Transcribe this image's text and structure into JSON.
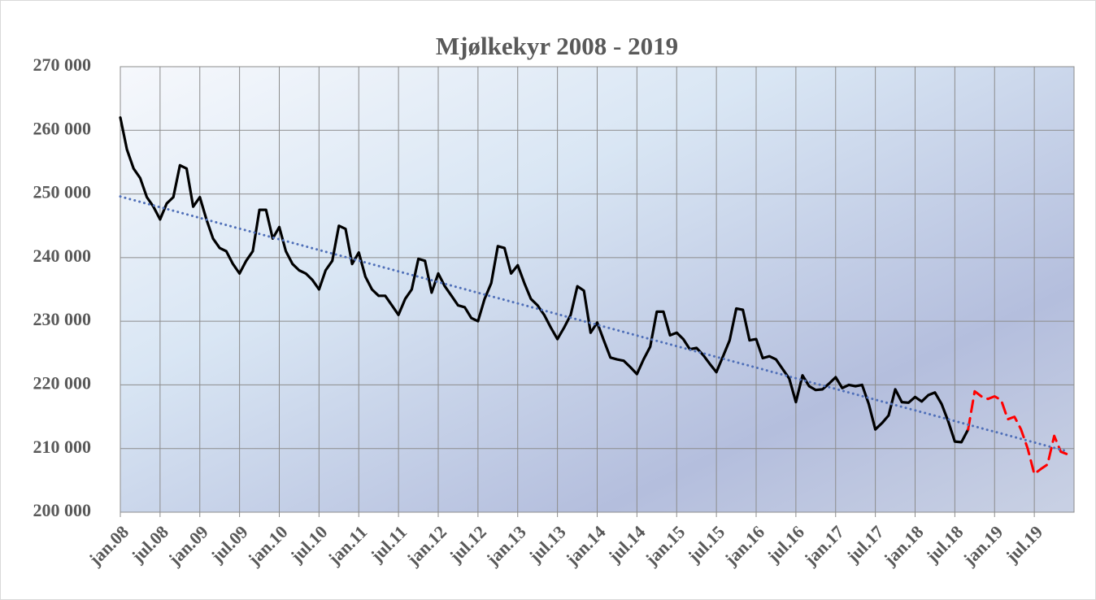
{
  "chart_data": {
    "type": "line",
    "title": "Mjølkekyr 2008 - 2019",
    "categories": [
      "jan.08",
      null,
      null,
      null,
      null,
      null,
      "jul.08",
      null,
      null,
      null,
      null,
      null,
      "jan.09",
      null,
      null,
      null,
      null,
      null,
      "jul.09",
      null,
      null,
      null,
      null,
      null,
      "jan.10",
      null,
      null,
      null,
      null,
      null,
      "jul.10",
      null,
      null,
      null,
      null,
      null,
      "jan.11",
      null,
      null,
      null,
      null,
      null,
      "jul.11",
      null,
      null,
      null,
      null,
      null,
      "jan.12",
      null,
      null,
      null,
      null,
      null,
      "jul.12",
      null,
      null,
      null,
      null,
      null,
      "jan.13",
      null,
      null,
      null,
      null,
      null,
      "jul.13",
      null,
      null,
      null,
      null,
      null,
      "jan.14",
      null,
      null,
      null,
      null,
      null,
      "jul.14",
      null,
      null,
      null,
      null,
      null,
      "jan.15",
      null,
      null,
      null,
      null,
      null,
      "jul.15",
      null,
      null,
      null,
      null,
      null,
      "jan.16",
      null,
      null,
      null,
      null,
      null,
      "jul.16",
      null,
      null,
      null,
      null,
      null,
      "jan.17",
      null,
      null,
      null,
      null,
      null,
      "jul.17",
      null,
      null,
      null,
      null,
      null,
      "jan.18",
      null,
      null,
      null,
      null,
      null,
      "jul.18",
      null,
      null,
      null,
      null,
      null,
      "jan.19",
      null,
      null,
      null,
      null,
      null,
      "jul.19",
      null,
      null,
      null,
      null,
      null
    ],
    "series": [
      {
        "color": "#000000",
        "style": "solid",
        "values": [
          262000,
          257000,
          254000,
          252500,
          249500,
          248000,
          246000,
          248500,
          249500,
          254500,
          254000,
          248000,
          249500,
          246000,
          243000,
          241500,
          241000,
          239000,
          237500,
          239500,
          241000,
          247500,
          247500,
          243000,
          244800,
          241000,
          239000,
          238000,
          237500,
          236500,
          235000,
          238000,
          239500,
          245000,
          244500,
          239000,
          240800,
          237000,
          235000,
          234000,
          234000,
          232500,
          231000,
          233500,
          235000,
          239800,
          239500,
          234500,
          237500,
          235500,
          234000,
          232500,
          232200,
          230500,
          230000,
          233500,
          236000,
          241800,
          241500,
          237500,
          238800,
          236000,
          233500,
          232500,
          231000,
          229000,
          227200,
          229000,
          231000,
          235500,
          234800,
          228200,
          229800,
          227000,
          224300,
          224000,
          223800,
          222800,
          221700,
          224000,
          226000,
          231500,
          231500,
          227800,
          228200,
          227200,
          225600,
          225800,
          224700,
          223300,
          222000,
          224500,
          227000,
          232000,
          231800,
          227000,
          227200,
          224200,
          224500,
          224000,
          222500,
          221000,
          217300,
          221500,
          219800,
          219200,
          219300,
          220200,
          221200,
          219500,
          220000,
          219800,
          220000,
          217000,
          213000,
          214000,
          215200,
          219300,
          217300,
          217200,
          218100,
          217400,
          218400,
          218800,
          217000,
          214300,
          211100,
          211000,
          213000,
          null,
          null,
          null,
          null,
          null,
          null,
          null,
          null,
          null,
          null,
          null,
          null,
          null,
          null,
          null
        ]
      },
      {
        "color": "#ff0000",
        "style": "dashed",
        "values": [
          null,
          null,
          null,
          null,
          null,
          null,
          null,
          null,
          null,
          null,
          null,
          null,
          null,
          null,
          null,
          null,
          null,
          null,
          null,
          null,
          null,
          null,
          null,
          null,
          null,
          null,
          null,
          null,
          null,
          null,
          null,
          null,
          null,
          null,
          null,
          null,
          null,
          null,
          null,
          null,
          null,
          null,
          null,
          null,
          null,
          null,
          null,
          null,
          null,
          null,
          null,
          null,
          null,
          null,
          null,
          null,
          null,
          null,
          null,
          null,
          null,
          null,
          null,
          null,
          null,
          null,
          null,
          null,
          null,
          null,
          null,
          null,
          null,
          null,
          null,
          null,
          null,
          null,
          null,
          null,
          null,
          null,
          null,
          null,
          null,
          null,
          null,
          null,
          null,
          null,
          null,
          null,
          null,
          null,
          null,
          null,
          null,
          null,
          null,
          null,
          null,
          null,
          null,
          null,
          null,
          null,
          null,
          null,
          null,
          null,
          null,
          null,
          null,
          null,
          null,
          null,
          null,
          null,
          null,
          null,
          null,
          null,
          null,
          null,
          null,
          null,
          null,
          null,
          213000,
          219000,
          218200,
          217800,
          218200,
          217600,
          214600,
          215000,
          213000,
          210000,
          206000,
          206800,
          207500,
          212000,
          209500,
          209100
        ]
      },
      {
        "color": "#4f6fb8",
        "style": "dotted",
        "values": [
          249600,
          249320,
          249040,
          248760,
          248480,
          248200,
          247920,
          247640,
          247360,
          247080,
          246800,
          246520,
          246240,
          245960,
          245680,
          245400,
          245120,
          244840,
          244560,
          244280,
          244000,
          243720,
          243440,
          243160,
          242880,
          242600,
          242320,
          242040,
          241760,
          241480,
          241200,
          240920,
          240640,
          240360,
          240080,
          239800,
          239520,
          239240,
          238960,
          238680,
          238400,
          238120,
          237840,
          237560,
          237280,
          237000,
          236720,
          236440,
          236160,
          235880,
          235600,
          235320,
          235040,
          234760,
          234480,
          234200,
          233920,
          233640,
          233360,
          233080,
          232800,
          232520,
          232240,
          231960,
          231680,
          231400,
          231120,
          230840,
          230560,
          230280,
          230000,
          229720,
          229440,
          229160,
          228880,
          228600,
          228320,
          228040,
          227760,
          227480,
          227200,
          226920,
          226640,
          226360,
          226080,
          225800,
          225520,
          225240,
          224960,
          224680,
          224400,
          224120,
          223840,
          223560,
          223280,
          223000,
          222720,
          222440,
          222160,
          221880,
          221600,
          221320,
          221040,
          220760,
          220480,
          220200,
          219920,
          219640,
          219360,
          219080,
          218800,
          218520,
          218240,
          217960,
          217680,
          217400,
          217120,
          216840,
          216560,
          216280,
          216000,
          215720,
          215440,
          215160,
          214880,
          214600,
          214320,
          214040,
          213760,
          213480,
          213200,
          212920,
          212640,
          212360,
          212080,
          211800,
          211520,
          211240,
          210960,
          210680,
          210400,
          210120,
          209840,
          209560
        ]
      }
    ],
    "ylim": [
      200000,
      270000
    ],
    "yticks": [
      {
        "value": 200000,
        "label": "200 000"
      },
      {
        "value": 210000,
        "label": "210 000"
      },
      {
        "value": 220000,
        "label": "220 000"
      },
      {
        "value": 230000,
        "label": "230 000"
      },
      {
        "value": 240000,
        "label": "240 000"
      },
      {
        "value": 250000,
        "label": "250 000"
      },
      {
        "value": 260000,
        "label": "260 000"
      },
      {
        "value": 270000,
        "label": "270 000"
      }
    ],
    "grid": true
  }
}
